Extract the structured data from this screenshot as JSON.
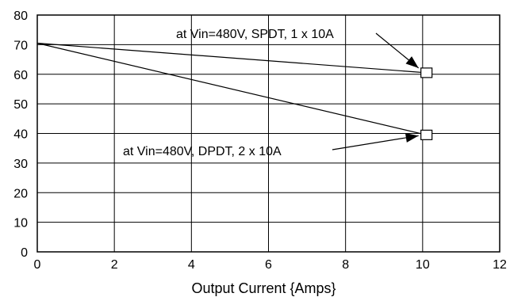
{
  "chart_data": {
    "type": "line",
    "title": "",
    "xlabel": "Output Current {Amps}",
    "ylabel": "",
    "xlim": [
      0,
      12
    ],
    "ylim": [
      0,
      80
    ],
    "x_ticks": [
      0,
      2,
      4,
      6,
      8,
      10,
      12
    ],
    "y_ticks": [
      0,
      10,
      20,
      30,
      40,
      50,
      60,
      70,
      80
    ],
    "x_tick_labels": [
      "0",
      "2",
      "4",
      "6",
      "8",
      "10",
      "12"
    ],
    "y_tick_labels": [
      "0",
      "10",
      "20",
      "30",
      "40",
      "50",
      "60",
      "70",
      "80"
    ],
    "grid": true,
    "series": [
      {
        "x": [
          0,
          10.1
        ],
        "y": [
          70.5,
          60.5
        ],
        "marker_end": "square"
      },
      {
        "x": [
          0,
          10.1
        ],
        "y": [
          70.5,
          39.5
        ],
        "marker_end": "square"
      }
    ],
    "annotations": [
      {
        "text": "at Vin=480V, SPDT, 1 x 10A",
        "target_series": 0
      },
      {
        "text": "at Vin=480V, DPDT, 2 x 10A",
        "target_series": 1
      }
    ]
  }
}
